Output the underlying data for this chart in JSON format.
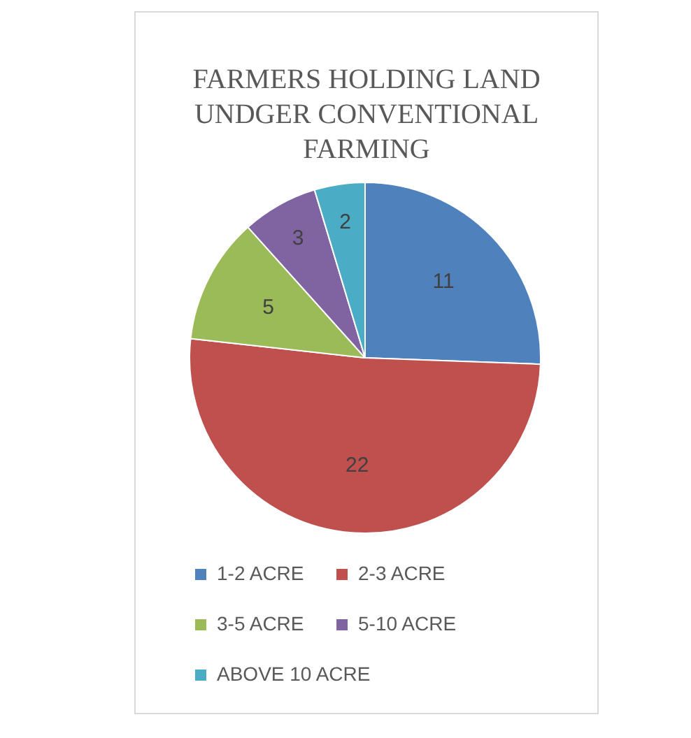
{
  "chart_data": {
    "type": "pie",
    "title": "FARMERS HOLDING LAND UNDGER CONVENTIONAL FARMING",
    "categories": [
      "1-2 ACRE",
      "2-3 ACRE",
      "3-5 ACRE",
      "5-10 ACRE",
      "ABOVE 10 ACRE"
    ],
    "values": [
      11,
      22,
      5,
      3,
      2
    ],
    "colors": [
      "#4f81bd",
      "#c0504d",
      "#9bbb59",
      "#8064a2",
      "#4bacc6"
    ],
    "data_labels": true,
    "legend": "bottom"
  }
}
